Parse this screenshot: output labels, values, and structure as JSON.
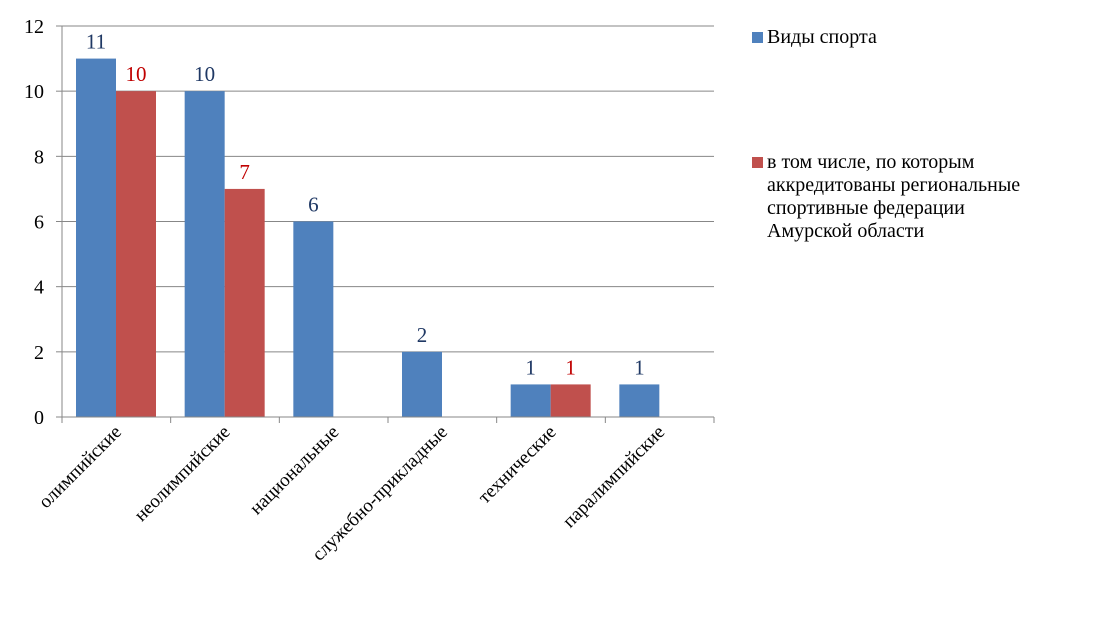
{
  "chart_data": {
    "type": "bar",
    "categories": [
      "олимпийские",
      "неолимпийские",
      "национальные",
      "служебно-прикладные",
      "технические",
      "паралимпийские"
    ],
    "series": [
      {
        "name": "Виды спорта",
        "values": [
          11,
          10,
          6,
          2,
          1,
          1
        ],
        "color": "#4f81bd",
        "label_color": "#1f3864",
        "labels": [
          "11",
          "10",
          "6",
          "2",
          "1",
          "1"
        ]
      },
      {
        "name": "в том числе, по которым аккредитованы региональные спортивные федерации Амурской области",
        "values": [
          10,
          7,
          null,
          null,
          1,
          null
        ],
        "color": "#c0504d",
        "label_color": "#c00000",
        "labels": [
          "10",
          "7",
          null,
          null,
          "1",
          null
        ]
      }
    ],
    "ylim": [
      0,
      12
    ],
    "y_ticks": [
      "0",
      "2",
      "4",
      "6",
      "8",
      "10",
      "12"
    ],
    "grid": true,
    "legend_position": "right"
  },
  "legend": {
    "line1": [
      "в том числе, по которым",
      "аккредитованы региональные",
      "спортивные федерации",
      "Амурской области"
    ]
  }
}
